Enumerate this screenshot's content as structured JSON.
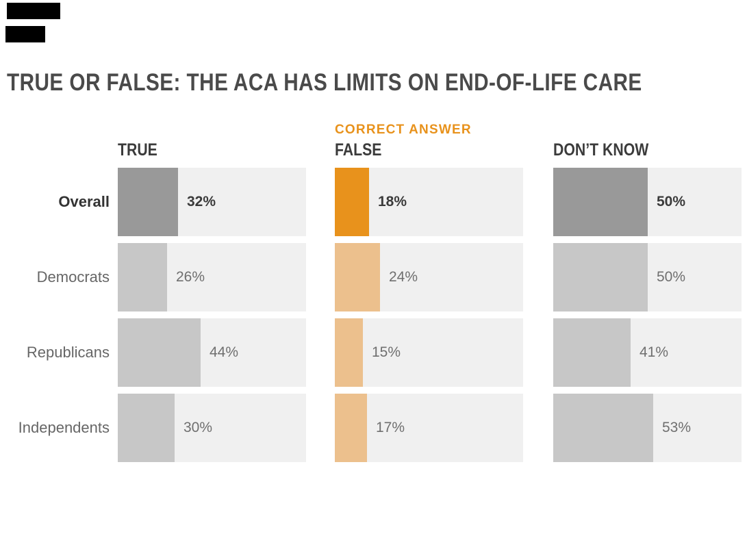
{
  "title": "TRUE OR FALSE: THE ACA HAS LIMITS ON END-OF-LIFE CARE",
  "chart_data": {
    "type": "bar",
    "orientation": "horizontal",
    "title": "TRUE OR FALSE: THE ACA HAS LIMITS ON END-OF-LIFE CARE",
    "categories": [
      "Overall",
      "Democrats",
      "Republicans",
      "Independents"
    ],
    "series": [
      {
        "name": "TRUE",
        "values": [
          32,
          26,
          44,
          30
        ]
      },
      {
        "name": "FALSE",
        "annotation": "CORRECT ANSWER",
        "values": [
          18,
          24,
          15,
          17
        ]
      },
      {
        "name": "DON’T KNOW",
        "values": [
          50,
          50,
          41,
          53
        ]
      }
    ],
    "value_suffix": "%",
    "xlim": [
      0,
      100
    ],
    "emphasized_category": "Overall",
    "grid": false,
    "legend_position": "column-headers"
  },
  "colors": {
    "background": "#FFFFFF",
    "track": "#F0F0F0",
    "bar_gray_emphasis": "#999999",
    "bar_gray": "#C7C7C7",
    "bar_orange_emphasis": "#E8921C",
    "bar_orange": "#ECC08D",
    "annotation_orange": "#E8921C",
    "title_text": "#4A4A4A",
    "header_text": "#3B3B3B",
    "row_label_text": "#666666",
    "row_label_text_emphasis": "#333333",
    "value_text": "#6F6F6F",
    "value_text_emphasis": "#3B3B3B",
    "redaction_block": "#000000"
  }
}
